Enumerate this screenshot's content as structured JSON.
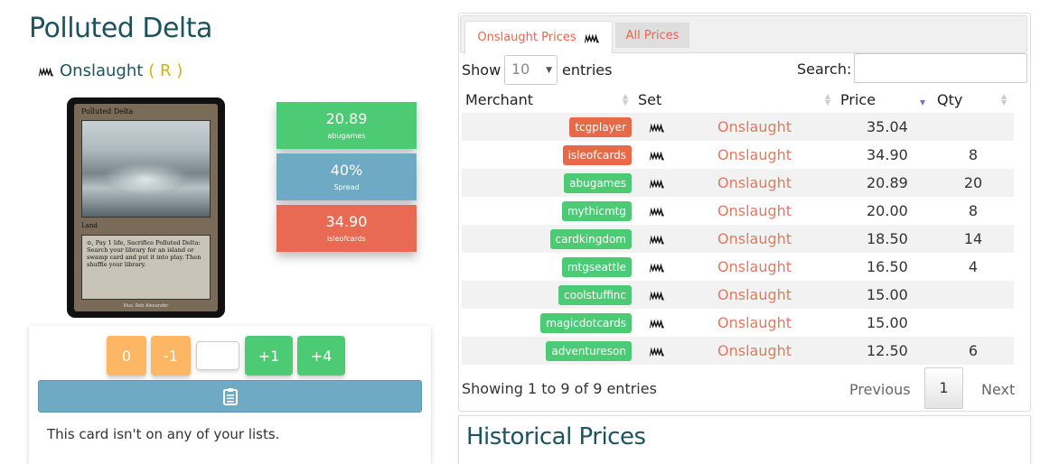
{
  "card": {
    "name": "Polluted Delta",
    "set": "Onslaught",
    "rarity": "( R )",
    "image": {
      "name": "Polluted Delta",
      "type": "Land",
      "text": "⊙, Pay 1 life, Sacrifice Polluted Delta: Search your library for an island or swamp card and put it into play. Then shuffle your library.",
      "footer": "Illus. Rob Alexander"
    }
  },
  "summary": [
    {
      "value": "20.89",
      "label": "abugames",
      "color": "#4ccb74"
    },
    {
      "value": "40%",
      "label": "Spread",
      "color": "#6eaac3"
    },
    {
      "value": "34.90",
      "label": "isleofcards",
      "color": "#e86a52"
    }
  ],
  "inventory": {
    "buttons": {
      "zero": "0",
      "minus1": "-1",
      "plus1": "+1",
      "plus4": "+4"
    },
    "quantity_value": "",
    "list_message": "This card isn't on any of your lists."
  },
  "tabs": {
    "active": "Onslaught Prices",
    "inactive": "All Prices"
  },
  "table": {
    "show_label": "Show",
    "page_size": "10",
    "entries_label": "entries",
    "search_label": "Search:",
    "search_value": "",
    "columns": [
      "Merchant",
      "Set",
      "Price",
      "Qty"
    ],
    "rows": [
      {
        "merchant": "tcgplayer",
        "color": "#e8684a",
        "set": "Onslaught",
        "price": "35.04",
        "qty": ""
      },
      {
        "merchant": "isleofcards",
        "color": "#e8684a",
        "set": "Onslaught",
        "price": "34.90",
        "qty": "8"
      },
      {
        "merchant": "abugames",
        "color": "#4ccb74",
        "set": "Onslaught",
        "price": "20.89",
        "qty": "20"
      },
      {
        "merchant": "mythicmtg",
        "color": "#4ccb74",
        "set": "Onslaught",
        "price": "20.00",
        "qty": "8"
      },
      {
        "merchant": "cardkingdom",
        "color": "#4ccb74",
        "set": "Onslaught",
        "price": "18.50",
        "qty": "14"
      },
      {
        "merchant": "mtgseattle",
        "color": "#4ccb74",
        "set": "Onslaught",
        "price": "16.50",
        "qty": "4"
      },
      {
        "merchant": "coolstuffinc",
        "color": "#4ccb74",
        "set": "Onslaught",
        "price": "15.00",
        "qty": ""
      },
      {
        "merchant": "magicdotcards",
        "color": "#4ccb74",
        "set": "Onslaught",
        "price": "15.00",
        "qty": ""
      },
      {
        "merchant": "adventureson",
        "color": "#4ccb74",
        "set": "Onslaught",
        "price": "12.50",
        "qty": "6"
      }
    ],
    "info": "Showing 1 to 9 of 9 entries",
    "pagination": {
      "previous": "Previous",
      "current": "1",
      "next": "Next"
    }
  },
  "historical": {
    "title": "Historical Prices"
  },
  "colors": {
    "heading": "#1d5361",
    "accent_red": "#e8684a",
    "accent_green": "#4ccb74",
    "accent_blue": "#6eaac3",
    "accent_orange": "#fdb663"
  }
}
